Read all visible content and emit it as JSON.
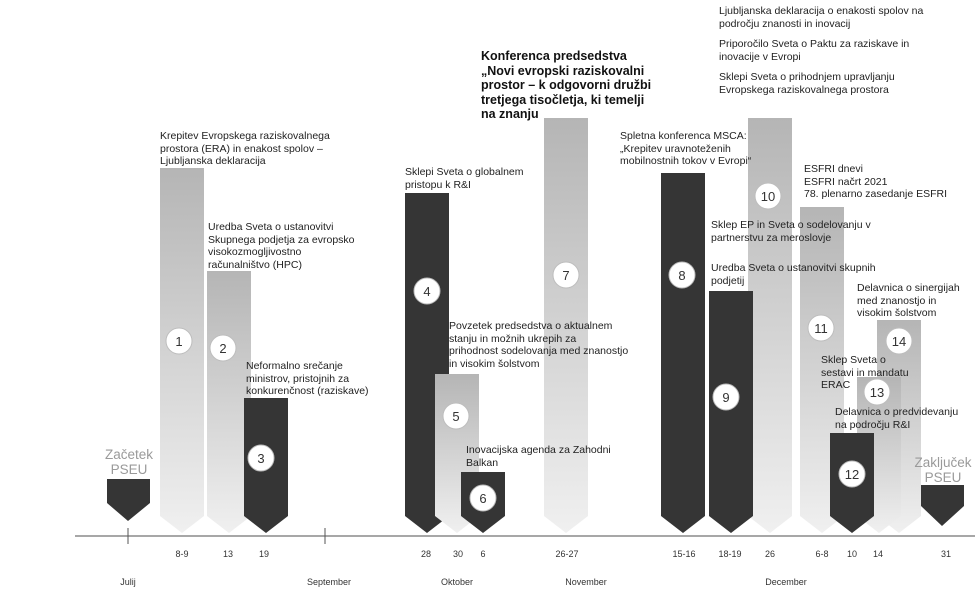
{
  "colors": {
    "dark": "#353535",
    "light_top": "#b8b8b8",
    "light_bottom": "#efefef",
    "axis": "#888888",
    "badge_border": "#bdbdbd"
  },
  "endpoints": {
    "start": {
      "label": "Začetek PSEU",
      "line1": "Začetek",
      "line2": "PSEU"
    },
    "end": {
      "label": "Zaključek PSEU",
      "line1": "Zaključek",
      "line2": "PSEU"
    }
  },
  "events": [
    {
      "num": "1",
      "text": "Krepitev Evropskega raziskovalnega prostora (ERA) in enakost spolov – Ljubljanska deklaracija",
      "lines": [
        "Krepitev Evropskega raziskovalnega",
        "prostora (ERA) in enakost spolov –",
        "Ljubljanska deklaracija"
      ],
      "style": "light"
    },
    {
      "num": "2",
      "text": "Uredba Sveta o ustanovitvi Skupnega podjetja za evropsko visokozmogljivostno računalništvo (HPC)",
      "lines": [
        "Uredba Sveta o ustanovitvi",
        "Skupnega podjetja za evropsko",
        "visokozmogljivostno",
        "računalništvo (HPC)"
      ],
      "style": "light"
    },
    {
      "num": "3",
      "text": "Neformalno srečanje ministrov, pristojnih za konkurenčnost (raziskave)",
      "lines": [
        "Neformalno srečanje",
        "ministrov, pristojnih za",
        "konkurenčnost (raziskave)"
      ],
      "style": "dark"
    },
    {
      "num": "4",
      "text": "Sklepi Sveta o globalnem pristopu k R&I",
      "lines": [
        "Sklepi Sveta o globalnem",
        "pristopu k R&I"
      ],
      "style": "dark"
    },
    {
      "num": "5",
      "text": "Povzetek predsedstva o aktualnem stanju in možnih ukrepih za prihodnost sodelovanja med znanostjo in visokim šolstvom",
      "lines": [
        "Povzetek predsedstva o aktualnem",
        "stanju in možnih ukrepih za",
        "prihodnost sodelovanja med znanostjo",
        "in visokim šolstvom"
      ],
      "style": "light"
    },
    {
      "num": "6",
      "text": "Inovacijska agenda za Zahodni Balkan",
      "lines": [
        "Inovacijska agenda za Zahodni",
        "Balkan"
      ],
      "style": "dark"
    },
    {
      "num": "7",
      "text": "Konferenca predsedstva „Novi evropski raziskovalni prostor – k odgovorni družbi tretjega tisočletja, ki temelji na znanju",
      "lines": [
        "Konferenca predsedstva",
        "„Novi evropski raziskovalni",
        "prostor – k odgovorni družbi",
        "tretjega tisočletja, ki temelji",
        "na znanju"
      ],
      "style": "light"
    },
    {
      "num": "8",
      "text": "Spletna konferenca MSCA: „Krepitev uravnoteženih mobilnostnih tokov v Evropi“",
      "lines": [
        "Spletna konferenca MSCA:",
        "„Krepitev uravnoteženih",
        "mobilnostnih tokov v Evropi“"
      ],
      "style": "dark"
    },
    {
      "num": "9",
      "text": "Uredba Sveta o ustanovitvi skupnih podjetij",
      "lines": [
        "Uredba Sveta o ustanovitvi skupnih",
        "podjetij"
      ],
      "style": "dark"
    },
    {
      "num": "10",
      "text": "Ljubljanska deklaracija o enakosti spolov na področju znanosti in inovacij; Priporočilo Sveta o Paktu za raziskave in inovacije v Evropi; Sklepi Sveta o prihodnjem upravljanju Evropskega raziskovalnega prostora",
      "lines": [
        "Ljubljanska deklaracija o enakosti spolov na",
        "področju znanosti in inovacij",
        "",
        "Priporočilo Sveta o Paktu za raziskave in",
        "inovacije v Evropi",
        "",
        "Sklepi Sveta o prihodnjem upravljanju",
        "Evropskega raziskovalnega prostora"
      ],
      "style": "light"
    },
    {
      "num": "11",
      "text": "ESFRI dnevi; ESFRI načrt 2021; 78. plenarno zasedanje ESFRI",
      "lines": [
        "ESFRI dnevi",
        "ESFRI načrt 2021",
        "78. plenarno zasedanje ESFRI"
      ],
      "style": "light"
    },
    {
      "num": "12",
      "text": "Delavnica o predvidevanju na področju R&I",
      "lines": [
        "Delavnica o predvidevanju",
        "na področju R&I"
      ],
      "style": "dark"
    },
    {
      "num": "13",
      "text": "Sklep Sveta o sestavi in mandatu ERAC",
      "lines": [
        "Sklep Sveta o",
        "sestavi in mandatu",
        "ERAC"
      ],
      "style": "light"
    },
    {
      "num": "14",
      "text": "Delavnica o sinergijah med znanostjo in visokim šolstvom",
      "lines": [
        "Delavnica o sinergijah",
        "med znanostjo in",
        "visokim šolstvom"
      ],
      "style": "light"
    }
  ],
  "ep_decision": {
    "text": "Sklep EP in Sveta o sodelovanju v partnerstvu za meroslovje",
    "lines": [
      "Sklep EP in Sveta o sodelovanju v",
      "partnerstvu za meroslovje"
    ]
  },
  "axis": {
    "ticks": [
      "8-9",
      "13",
      "19",
      "28",
      "30",
      "6",
      "26-27",
      "15-16",
      "18-19",
      "26",
      "6-8",
      "10",
      "14",
      "31"
    ],
    "months": [
      "Julij",
      "September",
      "Oktober",
      "November",
      "December"
    ]
  }
}
